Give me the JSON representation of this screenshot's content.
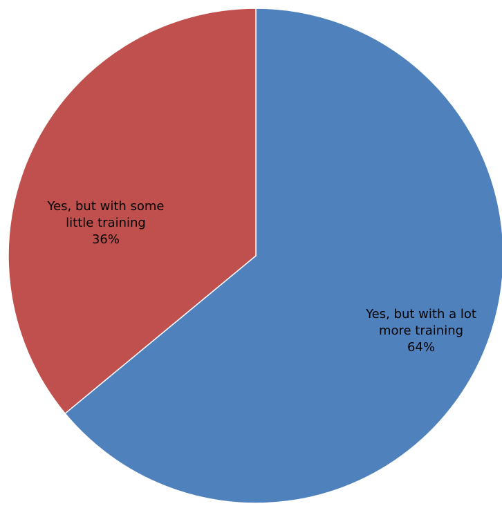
{
  "chart_data": {
    "type": "pie",
    "title": "",
    "slices": [
      {
        "label_lines": [
          "Yes, but with a lot",
          "more training"
        ],
        "value": 64,
        "value_label": "64%",
        "color": "#4F81BD"
      },
      {
        "label_lines": [
          "Yes, but with some",
          "little training"
        ],
        "value": 36,
        "value_label": "36%",
        "color": "#C0504D"
      }
    ],
    "start_angle_deg": 0,
    "direction": "clockwise",
    "border_color": "#FFFFFF",
    "legend": "none"
  }
}
